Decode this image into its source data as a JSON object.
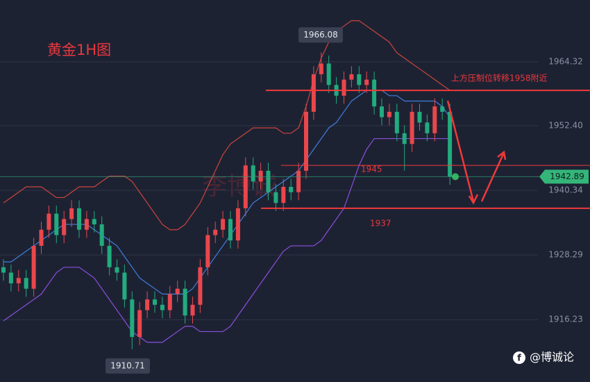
{
  "chart_data": {
    "type": "candlestick",
    "title": "黄金1H图",
    "open": [
      1926,
      1925,
      1923,
      1924,
      1922,
      1930,
      1933,
      1936,
      1932,
      1935,
      1937,
      1933,
      1935,
      1934,
      1930,
      1926,
      1925,
      1920,
      1913,
      1918,
      1920,
      1919,
      1918,
      1921,
      1922,
      1917,
      1919,
      1926,
      1932,
      1933,
      1935,
      1931,
      1937,
      1945,
      1942,
      1944,
      1940,
      1938,
      1941,
      1940,
      1944,
      1955,
      1962,
      1964,
      1960,
      1958,
      1961,
      1962,
      1960,
      1961,
      1956,
      1954,
      1955,
      1951,
      1949,
      1955,
      1953,
      1951,
      1956,
      1955
    ],
    "high": [
      1927.5,
      1926.5,
      1925.5,
      1925.5,
      1931.5,
      1934.5,
      1937.5,
      1937.5,
      1936.5,
      1938.5,
      1938.5,
      1936.5,
      1936.5,
      1935.5,
      1931.5,
      1927.5,
      1926.5,
      1921.5,
      1919.5,
      1921.5,
      1921.5,
      1920.5,
      1922.5,
      1923.5,
      1923.5,
      1920.5,
      1927.5,
      1933.5,
      1934.5,
      1936.5,
      1936.5,
      1938.5,
      1946.5,
      1946.5,
      1945.5,
      1945.5,
      1941.5,
      1942.5,
      1942.5,
      1945.5,
      1956.5,
      1963.5,
      1966.08,
      1965.5,
      1961.5,
      1962.5,
      1963.5,
      1963.5,
      1962.5,
      1962.5,
      1957.5,
      1956.5,
      1956.5,
      1952.5,
      1956.5,
      1956.5,
      1954.5,
      1957.5,
      1957.5,
      1956.5
    ],
    "low": [
      1923.5,
      1921.5,
      1921.5,
      1920.5,
      1920.5,
      1928.5,
      1931.5,
      1930.5,
      1930.5,
      1933.5,
      1931.5,
      1931.5,
      1932.5,
      1928.5,
      1924.5,
      1923.5,
      1918.5,
      1910.71,
      1911.5,
      1916.5,
      1917.5,
      1916.5,
      1916.5,
      1919.5,
      1915.5,
      1915.5,
      1917.5,
      1924.5,
      1930.5,
      1931.5,
      1929.5,
      1929.5,
      1935.5,
      1940.5,
      1940.5,
      1938.5,
      1936.5,
      1936.5,
      1938.5,
      1938.5,
      1942.5,
      1953.5,
      1960.5,
      1958.5,
      1956.5,
      1956.5,
      1959.5,
      1958.5,
      1958.5,
      1954.5,
      1952.5,
      1952.5,
      1949.5,
      1944,
      1947.5,
      1951.5,
      1949.5,
      1949.5,
      1953.5,
      1941.39
    ],
    "close": [
      1925,
      1923,
      1924,
      1922,
      1930,
      1933,
      1936,
      1932,
      1935,
      1937,
      1933,
      1935,
      1934,
      1930,
      1926,
      1925,
      1920,
      1913,
      1918,
      1920,
      1919,
      1918,
      1921,
      1922,
      1917,
      1919,
      1926,
      1932,
      1933,
      1935,
      1931,
      1937,
      1945,
      1942,
      1944,
      1940,
      1938,
      1941,
      1940,
      1944,
      1955,
      1962,
      1964,
      1960,
      1958,
      1961,
      1962,
      1960,
      1961,
      1956,
      1954,
      1955,
      1951,
      1949,
      1955,
      1953,
      1951,
      1956,
      1955,
      1942.89
    ],
    "up_color": "#e9474c",
    "down_color": "#22ab7e",
    "bands": [
      {
        "color": "#c9453c",
        "values": [
          1938,
          1939,
          1940,
          1941,
          1941,
          1941,
          1940,
          1939,
          1939,
          1940,
          1941,
          1941,
          1941,
          1942,
          1943,
          1943,
          1943,
          1942,
          1940,
          1938,
          1936,
          1934,
          1933,
          1933,
          1934,
          1936,
          1938,
          1941,
          1944,
          1947,
          1949,
          1950,
          1951,
          1952,
          1952,
          1952,
          1952,
          1951,
          1951,
          1952,
          1956,
          1961,
          1965,
          1968,
          1970,
          1971,
          1972,
          1972,
          1971,
          1970,
          1969,
          1968,
          1966,
          1965,
          1964,
          1963,
          1962,
          1961,
          1960,
          1959
        ]
      },
      {
        "color": "#3f7fdc",
        "values": [
          1927,
          1927,
          1928,
          1929,
          1930,
          1931,
          1932,
          1933,
          1934,
          1934,
          1934,
          1934,
          1933,
          1932,
          1931,
          1930,
          1928,
          1926,
          1924,
          1923,
          1922,
          1921,
          1921,
          1921,
          1921,
          1922,
          1924,
          1926,
          1928,
          1930,
          1932,
          1934,
          1936,
          1938,
          1939,
          1940,
          1941,
          1942,
          1943,
          1944,
          1946,
          1948,
          1950,
          1952,
          1953,
          1955,
          1957,
          1958,
          1959,
          1959,
          1959,
          1958,
          1958,
          1957,
          1957,
          1957,
          1957,
          1957,
          1956,
          1954
        ]
      },
      {
        "color": "#8a4fdc",
        "values": [
          1916,
          1917,
          1918,
          1919,
          1920,
          1921,
          1923,
          1925,
          1926,
          1926,
          1926,
          1925,
          1924,
          1922,
          1920,
          1918,
          1916,
          1914,
          1913,
          1912,
          1912,
          1912,
          1913,
          1914,
          1915,
          1915,
          1914,
          1914,
          1914,
          1914,
          1915,
          1917,
          1919,
          1921,
          1923,
          1925,
          1927,
          1929,
          1930,
          1930,
          1930,
          1930,
          1931,
          1933,
          1935,
          1937,
          1941,
          1945,
          1948,
          1950,
          1950,
          1950,
          1950,
          1950,
          1950,
          1950,
          1950,
          1950,
          1950,
          1950
        ]
      }
    ],
    "ylim": [
      1904.6,
      1975.85
    ],
    "yticks": [
      1916.23,
      1928.29,
      1940.34,
      {
        "value": 1952.4,
        "label": "1952.40"
      },
      1964.32
    ],
    "grid": true,
    "price_label": 1942.89,
    "high_label": 1966.08,
    "low_label": 1910.71,
    "levels": [
      {
        "value": 1959,
        "label": "上方压制位转移1958附近"
      },
      {
        "value": 1945,
        "label": "1945"
      },
      {
        "value": 1937,
        "label": "1937"
      }
    ]
  },
  "watermark": "李博诚",
  "footer": "@博诚论"
}
